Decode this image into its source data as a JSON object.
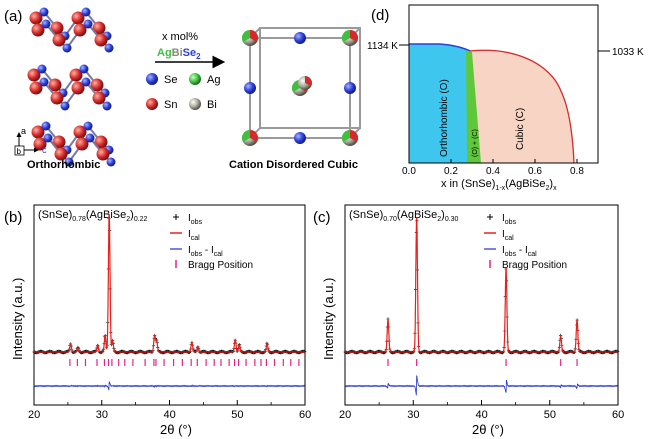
{
  "panel_a": {
    "label": "(a)",
    "arrow_text_line1": "x mol%",
    "arrow_text_compound": {
      "Ag": "Ag",
      "Bi": "Bi",
      "Se": "Se",
      "sub": "2"
    },
    "legend": [
      {
        "symbol": "Se",
        "color": "#2b3fd6"
      },
      {
        "symbol": "Ag",
        "color": "#3fbf3f"
      },
      {
        "symbol": "Sn",
        "color": "#d42a2a"
      },
      {
        "symbol": "Bi",
        "color": "#8a8a7a"
      }
    ],
    "axes": {
      "a": "a",
      "b": "b",
      "c": "c"
    },
    "left_caption": "Orthorhombic",
    "right_caption": "Cation Disordered Cubic"
  },
  "panel_d": {
    "label": "(d)",
    "temp_left": "1134 K",
    "temp_right": "1033 K",
    "region_orthorhombic": "Orthorhombic (O)",
    "region_mixed": "(O) + (C)",
    "region_cubic": "Cubic (C)",
    "xlabel_main": "x in (SnSe)",
    "xlabel_sub1": "1-x",
    "xlabel_mid": "(AgBiSe",
    "xlabel_sub2": "2",
    "xlabel_end": ")",
    "xlabel_sub3": "x",
    "xticks": [
      "0.0",
      "0.2",
      "0.4",
      "0.6",
      "0.8"
    ],
    "colors": {
      "orthorhombic": "#3fc6ee",
      "mixed": "#5fc83a",
      "cubic": "#f7d4c4",
      "boundary": "#d42a2a"
    }
  },
  "panel_b": {
    "label": "(b)",
    "composition": {
      "a": "(SnSe)",
      "a_sub": "0.78",
      "b": "(AgBiSe",
      "b_sub1": "2",
      "b_end": ")",
      "b_sub2": "0.22"
    },
    "ylabel": "Intensity (a.u.)",
    "xlabel": "2θ (°)"
  },
  "panel_c": {
    "label": "(c)",
    "composition": {
      "a": "(SnSe)",
      "a_sub": "0.70",
      "b": "(AgBiSe",
      "b_sub1": "2",
      "b_end": ")",
      "b_sub2": "0.30"
    },
    "ylabel": "Intensity (a.u.)",
    "xlabel": "2θ (°)"
  },
  "legend_xrd": {
    "obs": "I",
    "obs_sub": "obs",
    "cal": "I",
    "cal_sub": "cal",
    "diff_a": "I",
    "diff_a_sub": "obs",
    "diff_mid": " - I",
    "diff_b_sub": "cal",
    "bragg": "Bragg Position"
  },
  "chart_data": [
    {
      "type": "area",
      "panel": "d",
      "xlim": [
        0.0,
        0.9
      ],
      "xticks": [
        0.0,
        0.2,
        0.4,
        0.6,
        0.8
      ],
      "temp_labels": [
        "1134 K",
        "1033 K"
      ],
      "liquidus": {
        "x": [
          0.0,
          0.1,
          0.2,
          0.28,
          0.35,
          0.45,
          0.55,
          0.65,
          0.72,
          0.78,
          0.8
        ],
        "note": "boundary curve"
      },
      "regions": [
        "Orthorhombic (O)",
        "(O) + (C)",
        "Cubic (C)"
      ],
      "two_phase_x_range": [
        0.26,
        0.32
      ],
      "cubic_limit_x": 0.8
    },
    {
      "type": "line",
      "panel": "b",
      "xlim": [
        20,
        60
      ],
      "xticks": [
        20,
        30,
        40,
        50,
        60
      ],
      "series": [
        {
          "name": "Iobs",
          "peaks_x": [
            25.4,
            26.5,
            29.4,
            30.5,
            31.1,
            31.6,
            37.8,
            38.1,
            43.3,
            44.2,
            49.7,
            50.3,
            54.4
          ]
        },
        {
          "name": "Ical",
          "peaks_x": [
            25.4,
            26.5,
            29.4,
            30.5,
            31.1,
            31.6,
            37.8,
            38.1,
            43.3,
            44.2,
            49.7,
            50.3,
            54.4
          ]
        },
        {
          "name": "Iobs - Ical"
        }
      ],
      "peaks_rel": [
        0.06,
        0.03,
        0.05,
        0.12,
        1.0,
        0.08,
        0.12,
        0.08,
        0.07,
        0.04,
        0.09,
        0.05,
        0.06
      ],
      "bragg_positions": [
        25.3,
        26.4,
        27.6,
        29.3,
        30.4,
        31.0,
        31.5,
        32.5,
        33.4,
        34.6,
        36.4,
        37.7,
        38.0,
        39.2,
        40.6,
        41.9,
        43.2,
        44.1,
        45.4,
        46.6,
        47.6,
        48.8,
        49.6,
        50.2,
        51.3,
        52.6,
        53.5,
        54.3,
        55.5,
        56.8,
        57.9,
        59.1
      ]
    },
    {
      "type": "line",
      "panel": "c",
      "xlim": [
        20,
        60
      ],
      "xticks": [
        20,
        30,
        40,
        50,
        60
      ],
      "series": [
        {
          "name": "Iobs",
          "peaks_x": [
            26.3,
            30.5,
            43.6,
            51.6,
            54.0
          ]
        },
        {
          "name": "Ical",
          "peaks_x": [
            26.3,
            30.5,
            43.6,
            51.6,
            54.0
          ]
        },
        {
          "name": "Iobs - Ical"
        }
      ],
      "peaks_rel": [
        0.24,
        1.0,
        0.62,
        0.12,
        0.24
      ],
      "bragg_positions": [
        26.3,
        30.5,
        43.6,
        51.6,
        54.0
      ]
    }
  ]
}
